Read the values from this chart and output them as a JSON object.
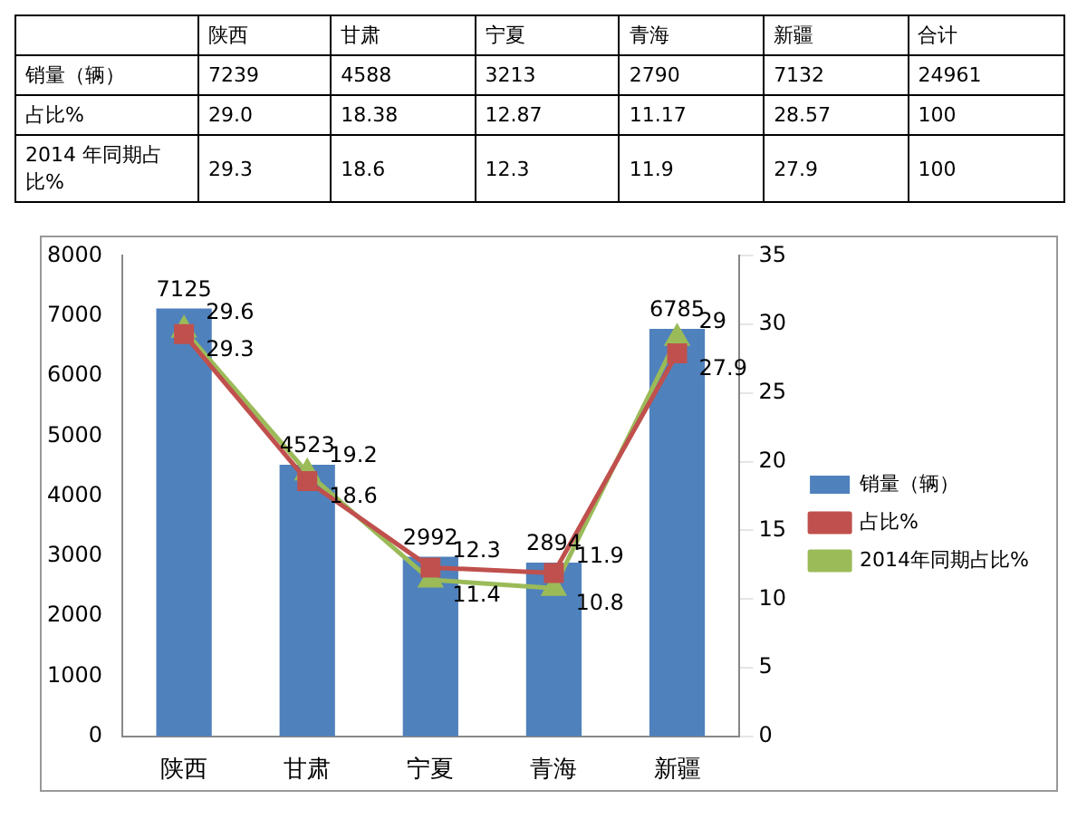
{
  "chart_data": [
    {
      "type": "other",
      "categories": [
        null,
        "陕西",
        "甘肃",
        "宁夏",
        "青海",
        "新疆",
        "合计"
      ],
      "y_categories": [
        "销量（辆）",
        "占比%",
        "2014 年同期占比%"
      ],
      "cell_labels": [
        [
          "7239",
          "4588",
          "3213",
          "2790",
          "7132",
          "24961"
        ],
        [
          "29.0",
          "18.38",
          "12.87",
          "11.17",
          "28.57",
          "100"
        ],
        [
          "29.3",
          "18.6",
          "12.3",
          "11.9",
          "27.9",
          "100"
        ]
      ]
    },
    {
      "type": "bar",
      "categories": [
        "陕西",
        "甘肃",
        "宁夏",
        "青海",
        "新疆"
      ],
      "series": [
        {
          "name": "销量（辆）",
          "type": "bar",
          "color": "#4f81bd",
          "values": [
            7125,
            4523,
            2992,
            2894,
            6785
          ]
        },
        {
          "name": "占比%",
          "type": "line",
          "axis": "y2",
          "marker": "square",
          "color": "#c0504d",
          "values": [
            29.3,
            18.6,
            12.3,
            11.9,
            27.9
          ]
        },
        {
          "name": "2014年同期占比%",
          "type": "line",
          "axis": "y2",
          "marker": "triangle",
          "color": "#9bbb59",
          "values": [
            29.6,
            19.2,
            11.4,
            10.8,
            29
          ]
        }
      ],
      "ylim": [
        0,
        8000
      ],
      "yticks": [
        0,
        1000,
        2000,
        3000,
        4000,
        5000,
        6000,
        7000,
        8000
      ],
      "y2lim": [
        0,
        35
      ],
      "y2ticks": [
        0,
        5,
        10,
        15,
        20,
        25,
        30,
        35
      ],
      "legend": "right",
      "data_labels": true
    }
  ]
}
